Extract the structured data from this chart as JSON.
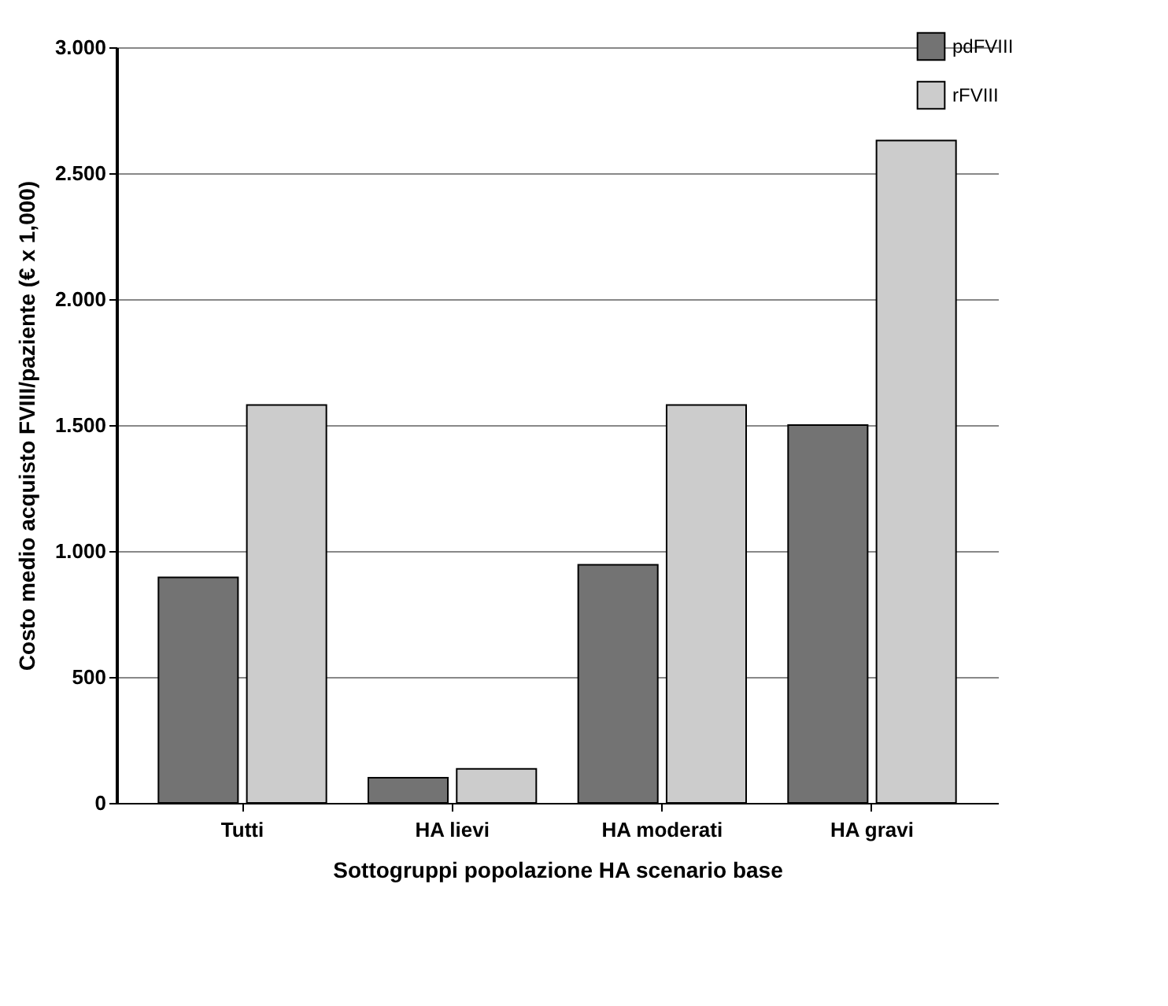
{
  "chart_data": {
    "type": "bar",
    "xlabel": "Sottogruppi popolazione HA scenario base",
    "ylabel": "Costo medio acquisto FVIII/paziente (€ x 1,000)",
    "categories": [
      "Tutti",
      "HA lievi",
      "HA moderati",
      "HA gravi"
    ],
    "series": [
      {
        "name": "pdFVIII",
        "color": "#737373",
        "values": [
          895,
          100,
          945,
          1500
        ]
      },
      {
        "name": "rFVIII",
        "color": "#cccccc",
        "values": [
          1580,
          135,
          1580,
          2630
        ]
      }
    ],
    "ylim": [
      0,
      3000
    ],
    "yticks": [
      {
        "value": 0,
        "label": "0"
      },
      {
        "value": 500,
        "label": "500"
      },
      {
        "value": 1000,
        "label": "1.000"
      },
      {
        "value": 1500,
        "label": "1.500"
      },
      {
        "value": 2000,
        "label": "2.000"
      },
      {
        "value": 2500,
        "label": "2.500"
      },
      {
        "value": 3000,
        "label": "3.000"
      }
    ],
    "grid": "y",
    "legend": "top right"
  }
}
